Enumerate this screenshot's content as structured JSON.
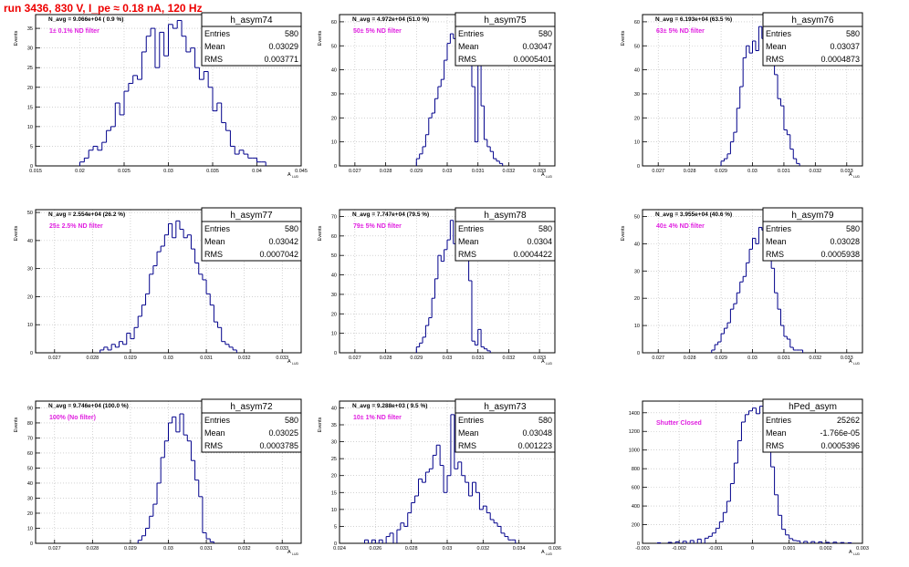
{
  "header": {
    "run_title": "run 3436,   830 V, I_pe ≈ 0.18 nA, 120 Hz"
  },
  "colors": {
    "hist_line": "#00008b",
    "title_red": "#ee0000",
    "filter_text": "#e020e0",
    "grid": "#b8b8b8"
  },
  "chart_data": [
    {
      "type": "bar",
      "name": "h_asym74",
      "navg": "N_avg = 9.066e+04 ( 0.9 %)",
      "filter": "1± 0.1% ND filter",
      "ylabel": "Events",
      "xlabel": "A",
      "xlim": [
        0.015,
        0.045
      ],
      "ylim": [
        0,
        38.5
      ],
      "xticks": [
        0.015,
        0.02,
        0.025,
        0.03,
        0.035,
        0.04,
        0.045
      ],
      "xtick_labels": [
        "0.015",
        "0.02",
        "0.025",
        "0.03",
        "0.035",
        "0.04",
        "0.045"
      ],
      "yticks": [
        0,
        5,
        10,
        15,
        20,
        25,
        30,
        35
      ],
      "grid": true,
      "stats": {
        "entries": "580",
        "mean": "0.03029",
        "rms": "0.003771"
      },
      "stats_labels": {
        "entries": "Entries",
        "mean": "Mean",
        "rms": "RMS"
      },
      "bin_width": 0.0005,
      "bin_centers": [
        0.02025,
        0.02075,
        0.02125,
        0.02175,
        0.02225,
        0.02275,
        0.02325,
        0.02375,
        0.02425,
        0.02475,
        0.02525,
        0.02575,
        0.02625,
        0.02675,
        0.02725,
        0.02775,
        0.02825,
        0.02875,
        0.02925,
        0.02975,
        0.03025,
        0.03075,
        0.03125,
        0.03175,
        0.03225,
        0.03275,
        0.03325,
        0.03375,
        0.03425,
        0.03475,
        0.03525,
        0.03575,
        0.03625,
        0.03675,
        0.03725,
        0.03775,
        0.03825,
        0.03875,
        0.03925,
        0.03975,
        0.04025,
        0.04075
      ],
      "values": [
        1,
        2,
        4,
        5,
        4,
        6,
        9,
        10,
        16,
        13,
        19,
        21,
        23,
        22,
        29,
        33,
        35,
        25,
        34,
        28,
        36,
        35,
        37,
        33,
        29,
        30,
        25,
        22,
        24,
        20,
        14,
        16,
        11,
        9,
        5,
        3,
        4,
        3,
        2,
        2,
        1,
        1
      ]
    },
    {
      "type": "bar",
      "name": "h_asym75",
      "navg": "N_avg = 4.972e+04 (51.0 %)",
      "filter": "50± 5% ND filter",
      "ylabel": "Events",
      "xlabel": "A",
      "xlim": [
        0.0265,
        0.0335
      ],
      "ylim": [
        0,
        63
      ],
      "xticks": [
        0.027,
        0.028,
        0.029,
        0.03,
        0.031,
        0.032,
        0.033
      ],
      "xtick_labels": [
        "0.027",
        "0.028",
        "0.029",
        "0.03",
        "0.031",
        "0.032",
        "0.033"
      ],
      "yticks": [
        0,
        10,
        20,
        30,
        40,
        50,
        60
      ],
      "grid": true,
      "stats": {
        "entries": "580",
        "mean": "0.03047",
        "rms": "0.0005401"
      },
      "stats_labels": {
        "entries": "Entries",
        "mean": "Mean",
        "rms": "RMS"
      },
      "bin_width": 0.0001,
      "bin_centers": [
        0.02905,
        0.02915,
        0.02925,
        0.02935,
        0.02945,
        0.02955,
        0.02965,
        0.02975,
        0.02985,
        0.02995,
        0.03005,
        0.03015,
        0.03025,
        0.03035,
        0.03045,
        0.03055,
        0.03065,
        0.03075,
        0.03085,
        0.03095,
        0.03105,
        0.03115,
        0.03125,
        0.03135,
        0.03145,
        0.03155,
        0.03165,
        0.03175
      ],
      "values": [
        3,
        5,
        8,
        13,
        20,
        22,
        28,
        33,
        36,
        44,
        51,
        55,
        53,
        61,
        50,
        58,
        56,
        44,
        33,
        10,
        48,
        25,
        11,
        8,
        6,
        3,
        2,
        1
      ]
    },
    {
      "type": "bar",
      "name": "h_asym76",
      "navg": "N_avg = 6.193e+04 (63.5 %)",
      "filter": "63± 5% ND filter",
      "ylabel": "Events",
      "xlabel": "A",
      "xlim": [
        0.0265,
        0.0335
      ],
      "ylim": [
        0,
        63
      ],
      "xticks": [
        0.027,
        0.028,
        0.029,
        0.03,
        0.031,
        0.032,
        0.033
      ],
      "xtick_labels": [
        "0.027",
        "0.028",
        "0.029",
        "0.03",
        "0.031",
        "0.032",
        "0.033"
      ],
      "yticks": [
        0,
        10,
        20,
        30,
        40,
        50,
        60
      ],
      "grid": true,
      "stats": {
        "entries": "580",
        "mean": "0.03037",
        "rms": "0.0004873"
      },
      "stats_labels": {
        "entries": "Entries",
        "mean": "Mean",
        "rms": "RMS"
      },
      "bin_width": 0.0001,
      "bin_centers": [
        0.02905,
        0.02915,
        0.02925,
        0.02935,
        0.02945,
        0.02955,
        0.02965,
        0.02975,
        0.02985,
        0.02995,
        0.03005,
        0.03015,
        0.03025,
        0.03035,
        0.03045,
        0.03055,
        0.03065,
        0.03075,
        0.03085,
        0.03095,
        0.03105,
        0.03115,
        0.03125,
        0.03135,
        0.03145
      ],
      "values": [
        2,
        3,
        5,
        10,
        14,
        24,
        33,
        45,
        50,
        47,
        52,
        48,
        58,
        53,
        48,
        60,
        51,
        38,
        28,
        25,
        15,
        13,
        7,
        3,
        1
      ]
    },
    {
      "type": "bar",
      "name": "h_asym77",
      "navg": "N_avg = 2.554e+04 (26.2 %)",
      "filter": "25± 2.5% ND filter",
      "ylabel": "Events",
      "xlabel": "A",
      "xlim": [
        0.0265,
        0.0335
      ],
      "ylim": [
        0,
        51
      ],
      "xticks": [
        0.027,
        0.028,
        0.029,
        0.03,
        0.031,
        0.032,
        0.033
      ],
      "xtick_labels": [
        "0.027",
        "0.028",
        "0.029",
        "0.03",
        "0.031",
        "0.032",
        "0.033"
      ],
      "yticks": [
        0,
        10,
        20,
        30,
        40,
        50
      ],
      "grid": true,
      "stats": {
        "entries": "580",
        "mean": "0.03042",
        "rms": "0.0007042"
      },
      "stats_labels": {
        "entries": "Entries",
        "mean": "Mean",
        "rms": "RMS"
      },
      "bin_width": 0.0001,
      "bin_centers": [
        0.02825,
        0.02835,
        0.02845,
        0.02855,
        0.02865,
        0.02875,
        0.02885,
        0.02895,
        0.02905,
        0.02915,
        0.02925,
        0.02935,
        0.02945,
        0.02955,
        0.02965,
        0.02975,
        0.02985,
        0.02995,
        0.03005,
        0.03015,
        0.03025,
        0.03035,
        0.03045,
        0.03055,
        0.03065,
        0.03075,
        0.03085,
        0.03095,
        0.03105,
        0.03115,
        0.03125,
        0.03135,
        0.03145,
        0.03155,
        0.03165,
        0.03175
      ],
      "values": [
        1,
        2,
        1,
        3,
        2,
        4,
        3,
        7,
        5,
        9,
        13,
        17,
        21,
        28,
        31,
        36,
        38,
        42,
        46,
        41,
        47,
        44,
        41,
        42,
        37,
        32,
        28,
        26,
        21,
        17,
        11,
        9,
        4,
        3,
        2,
        1
      ]
    },
    {
      "type": "bar",
      "name": "h_asym78",
      "navg": "N_avg = 7.747e+04 (79.5 %)",
      "filter": "79± 5% ND filter",
      "ylabel": "Events",
      "xlabel": "A",
      "xlim": [
        0.0265,
        0.0335
      ],
      "ylim": [
        0,
        73.5
      ],
      "xticks": [
        0.027,
        0.028,
        0.029,
        0.03,
        0.031,
        0.032,
        0.033
      ],
      "xtick_labels": [
        "0.027",
        "0.028",
        "0.029",
        "0.03",
        "0.031",
        "0.032",
        "0.033"
      ],
      "yticks": [
        0,
        10,
        20,
        30,
        40,
        50,
        60,
        70
      ],
      "grid": true,
      "stats": {
        "entries": "580",
        "mean": "0.0304",
        "rms": "0.0004422"
      },
      "stats_labels": {
        "entries": "Entries",
        "mean": "Mean",
        "rms": "RMS"
      },
      "bin_width": 0.0001,
      "bin_centers": [
        0.02905,
        0.02915,
        0.02925,
        0.02935,
        0.02945,
        0.02955,
        0.02965,
        0.02975,
        0.02985,
        0.02995,
        0.03005,
        0.03015,
        0.03025,
        0.03035,
        0.03045,
        0.03055,
        0.03065,
        0.03075,
        0.03085,
        0.03095,
        0.03105,
        0.03115,
        0.03125,
        0.03135
      ],
      "values": [
        3,
        5,
        8,
        14,
        18,
        28,
        38,
        50,
        47,
        53,
        58,
        68,
        56,
        71,
        58,
        70,
        52,
        37,
        6,
        4,
        12,
        3,
        2,
        1
      ]
    },
    {
      "type": "bar",
      "name": "h_asym79",
      "navg": "N_avg = 3.955e+04 (40.6 %)",
      "filter": "40± 4% ND filter",
      "ylabel": "Events",
      "xlabel": "A",
      "xlim": [
        0.0265,
        0.0335
      ],
      "ylim": [
        0,
        52.5
      ],
      "xticks": [
        0.027,
        0.028,
        0.029,
        0.03,
        0.031,
        0.032,
        0.033
      ],
      "xtick_labels": [
        "0.027",
        "0.028",
        "0.029",
        "0.03",
        "0.031",
        "0.032",
        "0.033"
      ],
      "yticks": [
        0,
        10,
        20,
        30,
        40,
        50
      ],
      "grid": true,
      "stats": {
        "entries": "580",
        "mean": "0.03028",
        "rms": "0.0005938"
      },
      "stats_labels": {
        "entries": "Entries",
        "mean": "Mean",
        "rms": "RMS"
      },
      "bin_width": 0.0001,
      "bin_centers": [
        0.02875,
        0.02885,
        0.02895,
        0.02905,
        0.02915,
        0.02925,
        0.02935,
        0.02945,
        0.02955,
        0.02965,
        0.02975,
        0.02985,
        0.02995,
        0.03005,
        0.03015,
        0.03025,
        0.03035,
        0.03045,
        0.03055,
        0.03065,
        0.03075,
        0.03085,
        0.03095,
        0.03105,
        0.03115,
        0.03125,
        0.03135,
        0.03145,
        0.03155
      ],
      "values": [
        1,
        3,
        4,
        7,
        9,
        11,
        16,
        18,
        22,
        26,
        28,
        33,
        38,
        42,
        40,
        46,
        45,
        44,
        36,
        31,
        22,
        16,
        10,
        6,
        5,
        2,
        1,
        1,
        1
      ]
    },
    {
      "type": "bar",
      "name": "h_asym72",
      "navg": "N_avg = 9.746e+04 (100.0 %)",
      "filter": "100% (No filter)",
      "ylabel": "Events",
      "xlabel": "A",
      "xlim": [
        0.0265,
        0.0335
      ],
      "ylim": [
        0,
        94.5
      ],
      "xticks": [
        0.027,
        0.028,
        0.029,
        0.03,
        0.031,
        0.032,
        0.033
      ],
      "xtick_labels": [
        "0.027",
        "0.028",
        "0.029",
        "0.03",
        "0.031",
        "0.032",
        "0.033"
      ],
      "yticks": [
        0,
        10,
        20,
        30,
        40,
        50,
        60,
        70,
        80,
        90
      ],
      "grid": true,
      "stats": {
        "entries": "580",
        "mean": "0.03025",
        "rms": "0.0003785"
      },
      "stats_labels": {
        "entries": "Entries",
        "mean": "Mean",
        "rms": "RMS"
      },
      "bin_width": 0.0001,
      "bin_centers": [
        0.02925,
        0.02935,
        0.02945,
        0.02955,
        0.02965,
        0.02975,
        0.02985,
        0.02995,
        0.03005,
        0.03015,
        0.03025,
        0.03035,
        0.03045,
        0.03055,
        0.03065,
        0.03075,
        0.03085,
        0.03095,
        0.03105,
        0.03115
      ],
      "values": [
        2,
        5,
        10,
        18,
        26,
        40,
        57,
        68,
        80,
        84,
        74,
        86,
        72,
        68,
        55,
        42,
        31,
        7,
        3,
        1
      ]
    },
    {
      "type": "bar",
      "name": "h_asym73",
      "navg": "N_avg = 9.288e+03 ( 9.5 %)",
      "filter": "10± 1% ND filter",
      "ylabel": "Events",
      "xlabel": "A",
      "xlim": [
        0.024,
        0.036
      ],
      "ylim": [
        0,
        42
      ],
      "xticks": [
        0.024,
        0.026,
        0.028,
        0.03,
        0.032,
        0.034,
        0.036
      ],
      "xtick_labels": [
        "0.024",
        "0.026",
        "0.028",
        "0.03",
        "0.032",
        "0.034",
        "0.036"
      ],
      "yticks": [
        0,
        5,
        10,
        15,
        20,
        25,
        30,
        35,
        40
      ],
      "grid": true,
      "stats": {
        "entries": "580",
        "mean": "0.03048",
        "rms": "0.001223"
      },
      "stats_labels": {
        "entries": "Entries",
        "mean": "Mean",
        "rms": "RMS"
      },
      "bin_width": 0.0002,
      "bin_centers": [
        0.0255,
        0.0259,
        0.0263,
        0.0267,
        0.0269,
        0.0273,
        0.0275,
        0.0277,
        0.0279,
        0.0281,
        0.0283,
        0.0285,
        0.0287,
        0.0289,
        0.0291,
        0.0293,
        0.0295,
        0.0297,
        0.0299,
        0.0301,
        0.0303,
        0.0305,
        0.0307,
        0.0309,
        0.0311,
        0.0313,
        0.0315,
        0.0317,
        0.0319,
        0.0321,
        0.0323,
        0.0325,
        0.0327,
        0.0329,
        0.0331,
        0.0333,
        0.0335,
        0.0337
      ],
      "values": [
        1,
        1,
        1,
        2,
        3,
        4,
        6,
        5,
        9,
        12,
        14,
        19,
        18,
        21,
        22,
        26,
        29,
        23,
        15,
        20,
        38,
        22,
        24,
        20,
        18,
        14,
        18,
        15,
        10,
        11,
        9,
        7,
        6,
        5,
        3,
        2,
        1,
        1
      ]
    },
    {
      "type": "bar",
      "name": "hPed_asym",
      "navg": "",
      "filter": "Shutter Closed",
      "ylabel": "",
      "xlabel": "A",
      "xlim": [
        -0.003,
        0.003
      ],
      "ylim": [
        0,
        1525
      ],
      "xticks": [
        -0.003,
        -0.002,
        -0.001,
        0,
        0.001,
        0.002,
        0.003
      ],
      "xtick_labels": [
        "-0.003",
        "-0.002",
        "-0.001",
        "0",
        "0.001",
        "0.002",
        "0.003"
      ],
      "yticks": [
        0,
        200,
        400,
        600,
        800,
        1000,
        1200,
        1400
      ],
      "grid": true,
      "stats": {
        "entries": "25262",
        "mean": "-1.766e-05",
        "rms": "0.0005396"
      },
      "stats_labels": {
        "entries": "Entries",
        "mean": "Mean",
        "rms": "RMS"
      },
      "bin_width": 0.0001,
      "bin_centers": [
        -0.00255,
        -0.00225,
        -0.00205,
        -0.00185,
        -0.00165,
        -0.00145,
        -0.00125,
        -0.00115,
        -0.00105,
        -0.00095,
        -0.00085,
        -0.00075,
        -0.00065,
        -0.00055,
        -0.00045,
        -0.00035,
        -0.00025,
        -0.00015,
        -5e-05,
        5e-05,
        0.00015,
        0.00025,
        0.00035,
        0.00045,
        0.00055,
        0.00065,
        0.00075,
        0.00085,
        0.00095,
        0.00105,
        0.00115,
        0.00125,
        0.00145,
        0.00165,
        0.00185,
        0.00205,
        0.00225,
        0.00245,
        0.00265
      ],
      "values": [
        5,
        10,
        15,
        22,
        30,
        45,
        55,
        75,
        110,
        160,
        230,
        330,
        450,
        640,
        860,
        1100,
        1300,
        1380,
        1420,
        1450,
        1390,
        1470,
        1370,
        1140,
        820,
        520,
        300,
        150,
        90,
        50,
        30,
        25,
        20,
        18,
        15,
        10,
        12,
        8,
        6
      ]
    }
  ]
}
